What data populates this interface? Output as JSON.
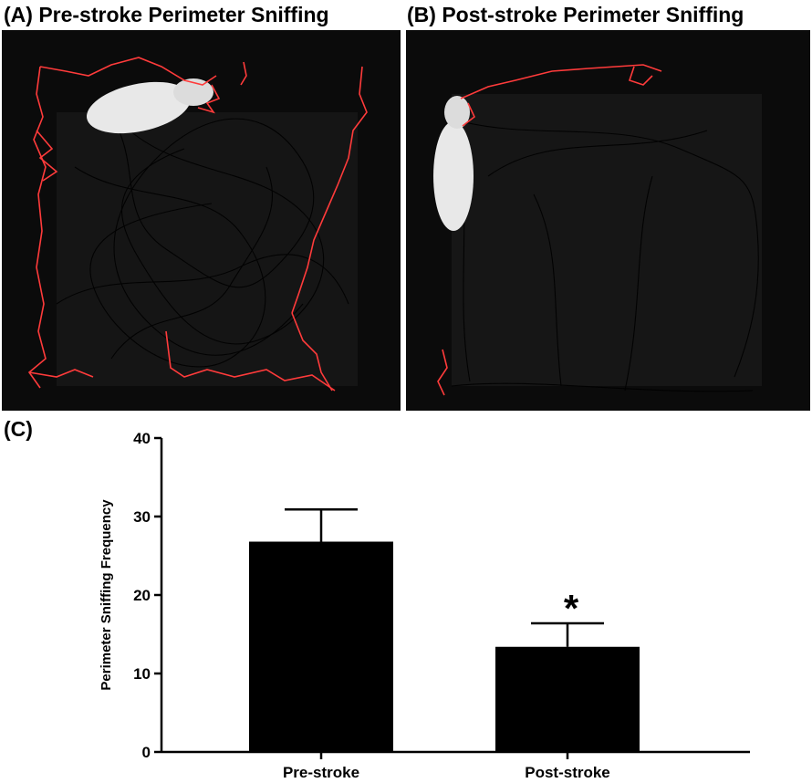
{
  "panels": {
    "a": {
      "title": "(A) Pre-stroke Perimeter Sniffing"
    },
    "b": {
      "title": "(B) Post-stroke Perimeter Sniffing"
    },
    "c": {
      "label": "(C)"
    }
  },
  "colors": {
    "track_perimeter": "#ff3b3b",
    "track_interior": "#000000",
    "arena": "#0b0b0b",
    "animal": "#e8e8e8",
    "bar": "#000000"
  },
  "chart_data": {
    "type": "bar",
    "categories": [
      "Pre-stroke",
      "Post-stroke"
    ],
    "values": [
      26.8,
      13.4
    ],
    "errors": [
      4.1,
      3.0
    ],
    "significance": [
      "",
      "*"
    ],
    "xlabel": "",
    "ylabel": "Perimeter Sniffing Frequency",
    "ylim": [
      0,
      40
    ],
    "yticks": [
      0,
      10,
      20,
      30,
      40
    ],
    "grid": false,
    "legend": "none"
  }
}
